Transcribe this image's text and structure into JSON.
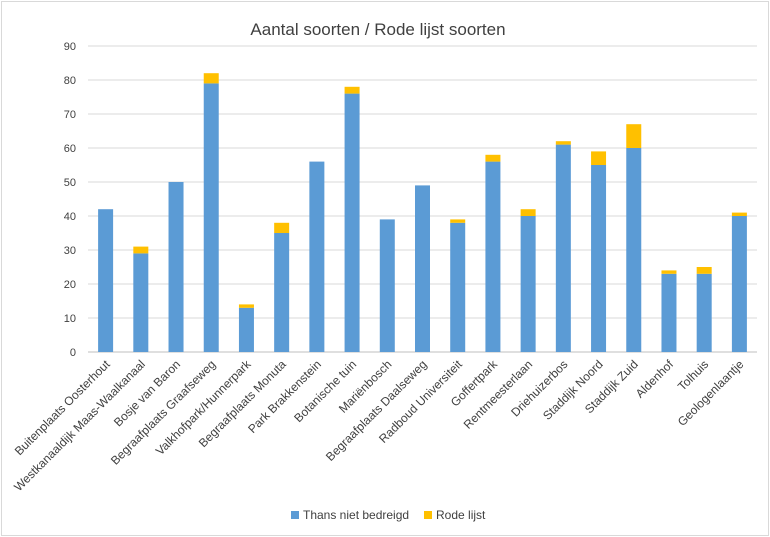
{
  "chart_data": {
    "type": "bar",
    "stacked": true,
    "title": "Aantal soorten / Rode lijst soorten",
    "ylim": [
      0,
      90
    ],
    "yticks": [
      0,
      10,
      20,
      30,
      40,
      50,
      60,
      70,
      80,
      90
    ],
    "grid": true,
    "legend_position": "bottom",
    "categories": [
      "Buitenplaats Oosterhout",
      "Westkanaaldijk Maas-Waalkanaal",
      "Bosje van Baron",
      "Begraafplaats Graafseweg",
      "Valkhofpark/Hunnerpark",
      "Begraafplaats Monuta",
      "Park Brakkenstein",
      "Botanische tuin",
      "Mariënbosch",
      "Begraafplaats Daalseweg",
      "Radboud Universiteit",
      "Goffertpark",
      "Rentmeesterlaan",
      "Driehuizerbos",
      "Staddijk Noord",
      "Staddijk Zuid",
      "Aldenhof",
      "Tolhuis",
      "Geologenlaantje"
    ],
    "series": [
      {
        "name": "Thans niet bedreigd",
        "color": "#5b9bd5",
        "values": [
          42,
          29,
          50,
          79,
          13,
          35,
          56,
          76,
          39,
          49,
          38,
          56,
          40,
          61,
          55,
          60,
          23,
          23,
          40
        ]
      },
      {
        "name": "Rode lijst",
        "color": "#ffc000",
        "values": [
          0,
          2,
          0,
          3,
          1,
          3,
          0,
          2,
          0,
          0,
          1,
          2,
          2,
          1,
          4,
          7,
          1,
          2,
          1
        ]
      }
    ]
  }
}
